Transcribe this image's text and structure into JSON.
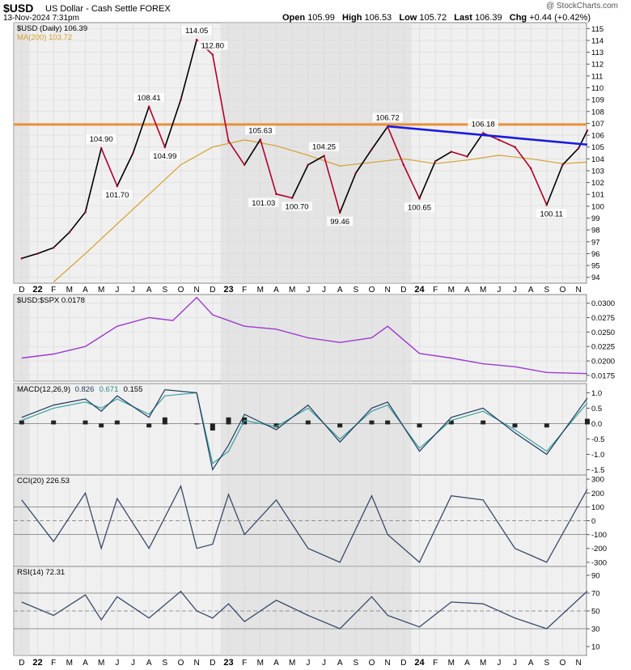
{
  "header": {
    "symbol": "$USD",
    "name": "US Dollar - Cash Settle",
    "exchange": "FOREX",
    "subtitle": "13-Nov-2024 7:31pm",
    "credit": "@ StockCharts.com",
    "open_label": "Open",
    "open": "105.99",
    "high_label": "High",
    "high": "106.53",
    "low_label": "Low",
    "low": "105.72",
    "last_label": "Last",
    "last": "106.39",
    "chg_label": "Chg",
    "chg": "+0.44 (+0.42%)"
  },
  "colors": {
    "price_up": "#000000",
    "price_down": "#b0002a",
    "ma": "#d4a02c",
    "resistance": "#e8923a",
    "trendline": "#1a1ae0",
    "ratio": "#9a3ccf",
    "macd": "#1f3b5c",
    "signal": "#3aa0a0",
    "hist": "#222222",
    "cci": "#3a4a6a",
    "rsi": "#3a4a6a",
    "shade": "#dcdcdc",
    "bg": "#ececec"
  },
  "x_axis": {
    "months": [
      "D",
      "22",
      "F",
      "M",
      "A",
      "M",
      "J",
      "J",
      "A",
      "S",
      "O",
      "N",
      "D",
      "23",
      "F",
      "M",
      "A",
      "M",
      "J",
      "J",
      "A",
      "S",
      "O",
      "N",
      "D",
      "24",
      "F",
      "M",
      "A",
      "M",
      "J",
      "J",
      "A",
      "S",
      "O",
      "N"
    ],
    "year_markers": [
      "22",
      "23",
      "24"
    ]
  },
  "chart_data": [
    {
      "type": "line",
      "panel": "price",
      "legend": [
        "$USD (Daily) 106.39",
        "MA(200) 103.72"
      ],
      "ylim": [
        93.5,
        115.5
      ],
      "y_ticks": [
        94,
        95,
        96,
        97,
        98,
        99,
        100,
        101,
        102,
        103,
        104,
        105,
        106,
        107,
        108,
        109,
        110,
        111,
        112,
        113,
        114,
        115
      ],
      "series": [
        {
          "name": "$USD (Daily)",
          "month_index": [
            0,
            1,
            2,
            3,
            4,
            5,
            6,
            7,
            8,
            9,
            10,
            11,
            12,
            13,
            14,
            15,
            16,
            17,
            18,
            19,
            20,
            21,
            22,
            23,
            24,
            25,
            26,
            27,
            28,
            29,
            30,
            31,
            32,
            33,
            34,
            35,
            35.55
          ],
          "values": [
            95.6,
            96.0,
            96.5,
            97.8,
            99.5,
            104.9,
            101.7,
            104.5,
            108.41,
            104.99,
            109.0,
            114.05,
            112.8,
            105.5,
            103.5,
            105.63,
            101.03,
            100.7,
            103.5,
            104.25,
            99.46,
            102.8,
            104.8,
            106.72,
            103.5,
            100.65,
            103.8,
            104.6,
            104.2,
            106.18,
            105.6,
            105.0,
            103.2,
            100.11,
            103.5,
            104.9,
            106.39
          ]
        },
        {
          "name": "MA(200)",
          "month_index": [
            2,
            4,
            6,
            8,
            10,
            12,
            14,
            16,
            18,
            20,
            22,
            24,
            26,
            28,
            30,
            32,
            34,
            35.55
          ],
          "values": [
            93.6,
            96.0,
            98.5,
            101.0,
            103.5,
            105.0,
            105.6,
            105.1,
            104.3,
            103.4,
            103.7,
            104.0,
            103.6,
            103.9,
            104.3,
            104.0,
            103.6,
            103.72
          ]
        }
      ],
      "annotations": [
        {
          "text": "104.90",
          "x": 5.0,
          "y": 104.9,
          "pos": "above"
        },
        {
          "text": "101.70",
          "x": 6.0,
          "y": 101.7,
          "pos": "below"
        },
        {
          "text": "108.41",
          "x": 8.0,
          "y": 108.41,
          "pos": "above"
        },
        {
          "text": "104.99",
          "x": 9.0,
          "y": 104.99,
          "pos": "below"
        },
        {
          "text": "114.05",
          "x": 11.0,
          "y": 114.05,
          "pos": "above"
        },
        {
          "text": "112.80",
          "x": 12.0,
          "y": 112.8,
          "pos": "above"
        },
        {
          "text": "105.63",
          "x": 15.0,
          "y": 105.63,
          "pos": "above"
        },
        {
          "text": "101.03",
          "x": 15.2,
          "y": 101.03,
          "pos": "below"
        },
        {
          "text": "100.70",
          "x": 17.3,
          "y": 100.7,
          "pos": "below"
        },
        {
          "text": "104.25",
          "x": 19.0,
          "y": 104.25,
          "pos": "above"
        },
        {
          "text": "99.46",
          "x": 20.0,
          "y": 99.46,
          "pos": "below"
        },
        {
          "text": "106.72",
          "x": 23.0,
          "y": 106.72,
          "pos": "above"
        },
        {
          "text": "100.65",
          "x": 25.0,
          "y": 100.65,
          "pos": "below"
        },
        {
          "text": "106.18",
          "x": 29.0,
          "y": 106.18,
          "pos": "above"
        },
        {
          "text": "100.11",
          "x": 33.3,
          "y": 100.11,
          "pos": "below"
        }
      ],
      "resistance_level": 106.9,
      "trendline": [
        [
          23.0,
          106.75
        ],
        [
          35.55,
          105.2
        ]
      ]
    },
    {
      "type": "line",
      "panel": "ratio",
      "legend": [
        "$USD:$SPX 0.0178"
      ],
      "ylim": [
        0.0165,
        0.0315
      ],
      "y_ticks_values": [
        0.0175,
        0.02,
        0.0225,
        0.025,
        0.0275,
        0.03
      ],
      "y_tick_labels": [
        "0.0175",
        "0.0200",
        "0.0225",
        "0.0250",
        "0.0275",
        "0.0300"
      ],
      "series": [
        {
          "name": "$USD:$SPX",
          "month_index": [
            0,
            2,
            4,
            6,
            8,
            9.5,
            11,
            12,
            14,
            16,
            18,
            20,
            22,
            23,
            25,
            27,
            29,
            31,
            33,
            35.55
          ],
          "values": [
            0.0205,
            0.0212,
            0.0225,
            0.026,
            0.0275,
            0.027,
            0.031,
            0.028,
            0.026,
            0.0255,
            0.024,
            0.0232,
            0.024,
            0.026,
            0.0213,
            0.0205,
            0.0195,
            0.019,
            0.018,
            0.0178
          ]
        }
      ]
    },
    {
      "type": "line",
      "panel": "macd",
      "legend": [
        "MACD(12,26,9)",
        "0.826",
        "0.671",
        "0.155"
      ],
      "ylim": [
        -1.75,
        1.3
      ],
      "y_ticks": [
        -1.5,
        -1.0,
        -0.5,
        0.0,
        0.5,
        1.0
      ],
      "y_tick_labels": [
        "-1.5",
        "-1.0",
        "-0.5",
        "0.0",
        "0.5",
        "1.0"
      ],
      "series": [
        {
          "name": "MACD",
          "month_index": [
            0,
            2,
            4,
            5,
            6,
            8,
            9,
            11,
            12,
            13,
            14,
            16,
            18,
            20,
            22,
            23,
            25,
            27,
            29,
            31,
            33,
            35.55
          ],
          "values": [
            0.2,
            0.6,
            0.8,
            0.4,
            0.9,
            0.2,
            1.1,
            1.0,
            -1.5,
            -0.7,
            0.3,
            -0.2,
            0.6,
            -0.6,
            0.5,
            0.7,
            -0.9,
            0.2,
            0.5,
            -0.3,
            -1.0,
            0.826
          ]
        },
        {
          "name": "Signal",
          "month_index": [
            0,
            2,
            4,
            5,
            6,
            8,
            9,
            11,
            12,
            13,
            14,
            16,
            18,
            20,
            22,
            23,
            25,
            27,
            29,
            31,
            33,
            35.55
          ],
          "values": [
            0.1,
            0.5,
            0.7,
            0.5,
            0.8,
            0.3,
            0.9,
            1.0,
            -1.3,
            -0.9,
            0.1,
            -0.1,
            0.5,
            -0.5,
            0.4,
            0.6,
            -0.8,
            0.1,
            0.4,
            -0.2,
            -0.9,
            0.671
          ]
        }
      ]
    },
    {
      "type": "line",
      "panel": "cci",
      "legend": [
        "CCI(20) 226.53"
      ],
      "ylim": [
        -330,
        330
      ],
      "y_ticks": [
        -300,
        -200,
        -100,
        0,
        100,
        200,
        300
      ],
      "y_tick_labels": [
        "-300",
        "-200",
        "-100",
        "0",
        "100",
        "200",
        "300"
      ],
      "series": [
        {
          "name": "CCI(20)",
          "month_index": [
            0,
            2,
            4,
            5,
            6,
            8,
            10,
            11,
            12,
            13,
            14,
            16,
            18,
            20,
            22,
            23,
            25,
            27,
            29,
            31,
            33,
            35.55
          ],
          "values": [
            150,
            -150,
            200,
            -200,
            160,
            -200,
            250,
            -200,
            -170,
            190,
            -100,
            150,
            -200,
            -300,
            180,
            -100,
            -300,
            180,
            150,
            -200,
            -300,
            226.53
          ]
        }
      ]
    },
    {
      "type": "line",
      "panel": "rsi",
      "legend": [
        "RSI(14) 72.31"
      ],
      "ylim": [
        0,
        100
      ],
      "y_ticks": [
        10,
        30,
        50,
        70,
        90
      ],
      "y_tick_labels": [
        "10",
        "30",
        "50",
        "70",
        "90"
      ],
      "series": [
        {
          "name": "RSI(14)",
          "month_index": [
            0,
            2,
            4,
            5,
            6,
            8,
            10,
            11,
            12,
            13,
            14,
            16,
            18,
            20,
            22,
            23,
            25,
            27,
            29,
            31,
            33,
            35.55
          ],
          "values": [
            60,
            45,
            68,
            40,
            66,
            42,
            72,
            50,
            42,
            58,
            38,
            62,
            45,
            30,
            66,
            45,
            32,
            60,
            58,
            42,
            30,
            72.31
          ]
        }
      ]
    }
  ]
}
